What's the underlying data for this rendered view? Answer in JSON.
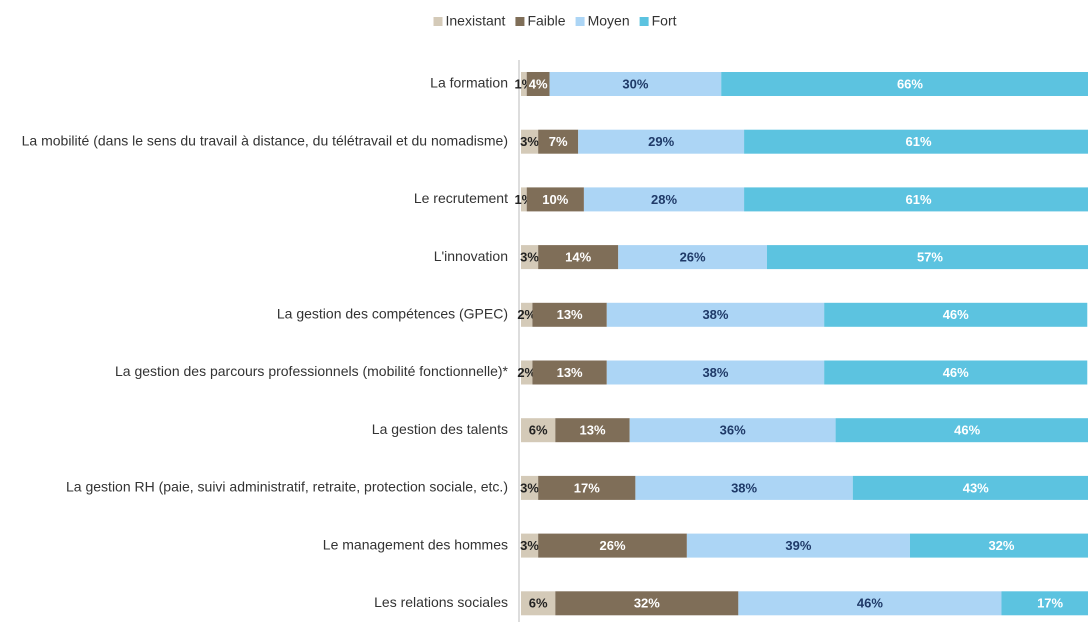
{
  "chart_data": {
    "type": "stacked_barh",
    "categories": [
      "La formation",
      "La mobilité (dans le sens du travail à distance, du télétravail et du nomadisme)",
      "Le recrutement",
      "L'innovation",
      "La gestion des compétences (GPEC)",
      "La gestion des parcours professionnels (mobilité fonctionnelle)*",
      "La gestion des talents",
      "La gestion RH (paie, suivi administratif, retraite, protection sociale, etc.)",
      "Le management des hommes",
      "Les relations sociales"
    ],
    "series": [
      {
        "name": "Inexistant",
        "color": "#d4cab8",
        "label_color": "#222222",
        "values": [
          1,
          3,
          1,
          3,
          2,
          2,
          6,
          3,
          3,
          6
        ],
        "value_labels": [
          "1%",
          "3%",
          "1%",
          "3%",
          "2%",
          "2%",
          "6%",
          "3%",
          "3%",
          "6%"
        ]
      },
      {
        "name": "Faible",
        "color": "#7f6e58",
        "label_color": "#ffffff",
        "values": [
          4,
          7,
          10,
          14,
          13,
          13,
          13,
          17,
          26,
          32
        ],
        "value_labels": [
          "4%",
          "7%",
          "10%",
          "14%",
          "13%",
          "13%",
          "13%",
          "17%",
          "26%",
          "32%"
        ]
      },
      {
        "name": "Moyen",
        "color": "#acd5f5",
        "label_color": "#1f3a68",
        "values": [
          30,
          29,
          28,
          26,
          38,
          38,
          36,
          38,
          39,
          46
        ],
        "value_labels": [
          "30%",
          "29%",
          "28%",
          "26%",
          "38%",
          "38%",
          "36%",
          "38%",
          "39%",
          "46%"
        ]
      },
      {
        "name": "Fort",
        "color": "#5cc3e0",
        "label_color": "#ffffff",
        "values": [
          66,
          61,
          61,
          57,
          46,
          46,
          46,
          43,
          32,
          17
        ],
        "value_labels": [
          "66%",
          "61%",
          "61%",
          "57%",
          "46%",
          "46%",
          "46%",
          "43%",
          "32%",
          "17%"
        ]
      }
    ],
    "legend": "top"
  }
}
